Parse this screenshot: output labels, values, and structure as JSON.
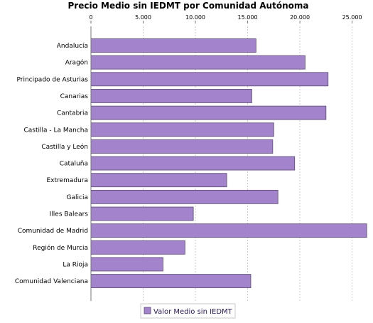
{
  "chart_data": {
    "type": "bar",
    "orientation": "horizontal",
    "title": "Precio Medio sin IEDMT por Comunidad Autónoma",
    "xlabel": "",
    "ylabel": "",
    "xlim": [
      0,
      27000
    ],
    "ticks": [
      0,
      5000,
      10000,
      15000,
      20000,
      25000
    ],
    "tick_labels": [
      "0",
      "5.000",
      "10.000",
      "15.000",
      "20.000",
      "25.000"
    ],
    "tick_position": "top",
    "grid": true,
    "legend_placement": "bottom",
    "bar_color": "#a383cb",
    "categories": [
      "Andalucía",
      "Aragón",
      "Principado de Asturias",
      "Canarias",
      "Cantabria",
      "Castilla - La Mancha",
      "Castilla y León",
      "Cataluña",
      "Extremadura",
      "Galicia",
      "Illes Balears",
      "Comunidad de Madrid",
      "Región de Murcia",
      "La Rioja",
      "Comunidad Valenciana"
    ],
    "series": [
      {
        "name": "Valor Medio sin IEDMT",
        "values": [
          15800,
          20500,
          22700,
          15400,
          22500,
          17500,
          17400,
          19500,
          13000,
          17900,
          9800,
          26400,
          9000,
          6900,
          15300
        ]
      }
    ]
  }
}
